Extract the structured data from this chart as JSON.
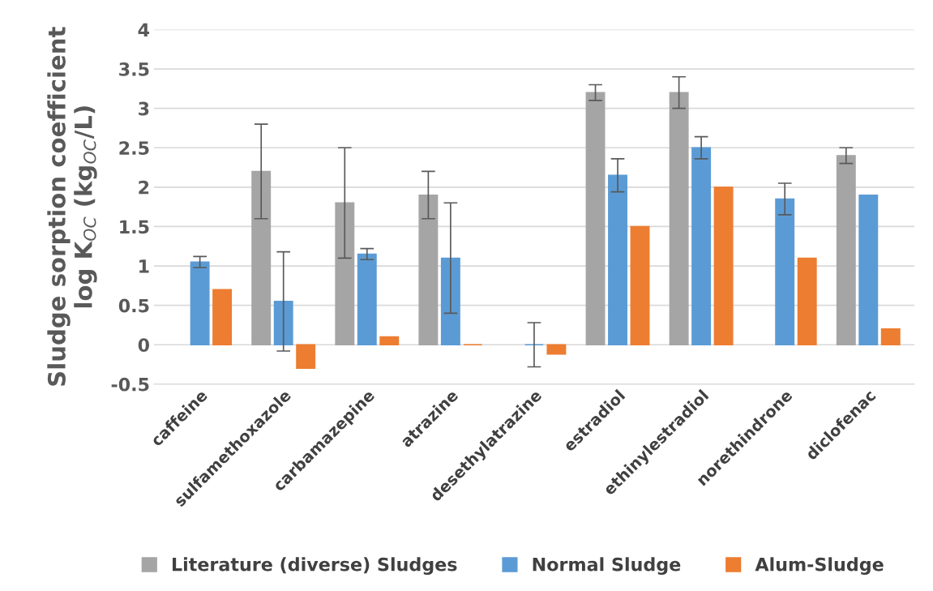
{
  "chart_data": {
    "type": "bar",
    "ylabel": "Sludge sorption coefficient\nlog K$_{OC}$ (kg$_{OC}$/L)",
    "categories": [
      "caffeine",
      "sulfamethoxazole",
      "carbamazepine",
      "atrazine",
      "desethylatrazine",
      "estradiol",
      "ethinylestradiol",
      "norethindrone",
      "diclofenac"
    ],
    "series": [
      {
        "name": "Literature (diverse) Sludges",
        "color": "#a5a5a5",
        "values": [
          null,
          2.2,
          1.8,
          1.9,
          null,
          3.2,
          3.2,
          null,
          2.4
        ],
        "errors": [
          null,
          [
            1.6,
            2.8
          ],
          [
            1.1,
            2.5
          ],
          [
            1.6,
            2.2
          ],
          null,
          [
            3.1,
            3.3
          ],
          [
            3.0,
            3.4
          ],
          null,
          [
            2.3,
            2.5
          ]
        ]
      },
      {
        "name": "Normal Sludge",
        "color": "#5b9bd5",
        "values": [
          1.05,
          0.55,
          1.15,
          1.1,
          0,
          2.15,
          2.5,
          1.85,
          1.9
        ],
        "errors": [
          [
            0.98,
            1.12
          ],
          [
            -0.08,
            1.18
          ],
          [
            1.08,
            1.22
          ],
          [
            0.4,
            1.8
          ],
          [
            -0.28,
            0.28
          ],
          [
            1.94,
            2.36
          ],
          [
            2.36,
            2.64
          ],
          [
            1.65,
            2.05
          ],
          null
        ]
      },
      {
        "name": "Alum-Sludge",
        "color": "#ed7d31",
        "values": [
          0.7,
          -0.3,
          0.1,
          0,
          -0.12,
          1.5,
          2.0,
          1.1,
          0.2
        ]
      }
    ],
    "ylim": [
      -0.5,
      4
    ],
    "yticks": [
      -0.5,
      0,
      0.5,
      1,
      1.5,
      2,
      2.5,
      3,
      3.5,
      4
    ],
    "grid": "y",
    "legend": "bottom"
  }
}
